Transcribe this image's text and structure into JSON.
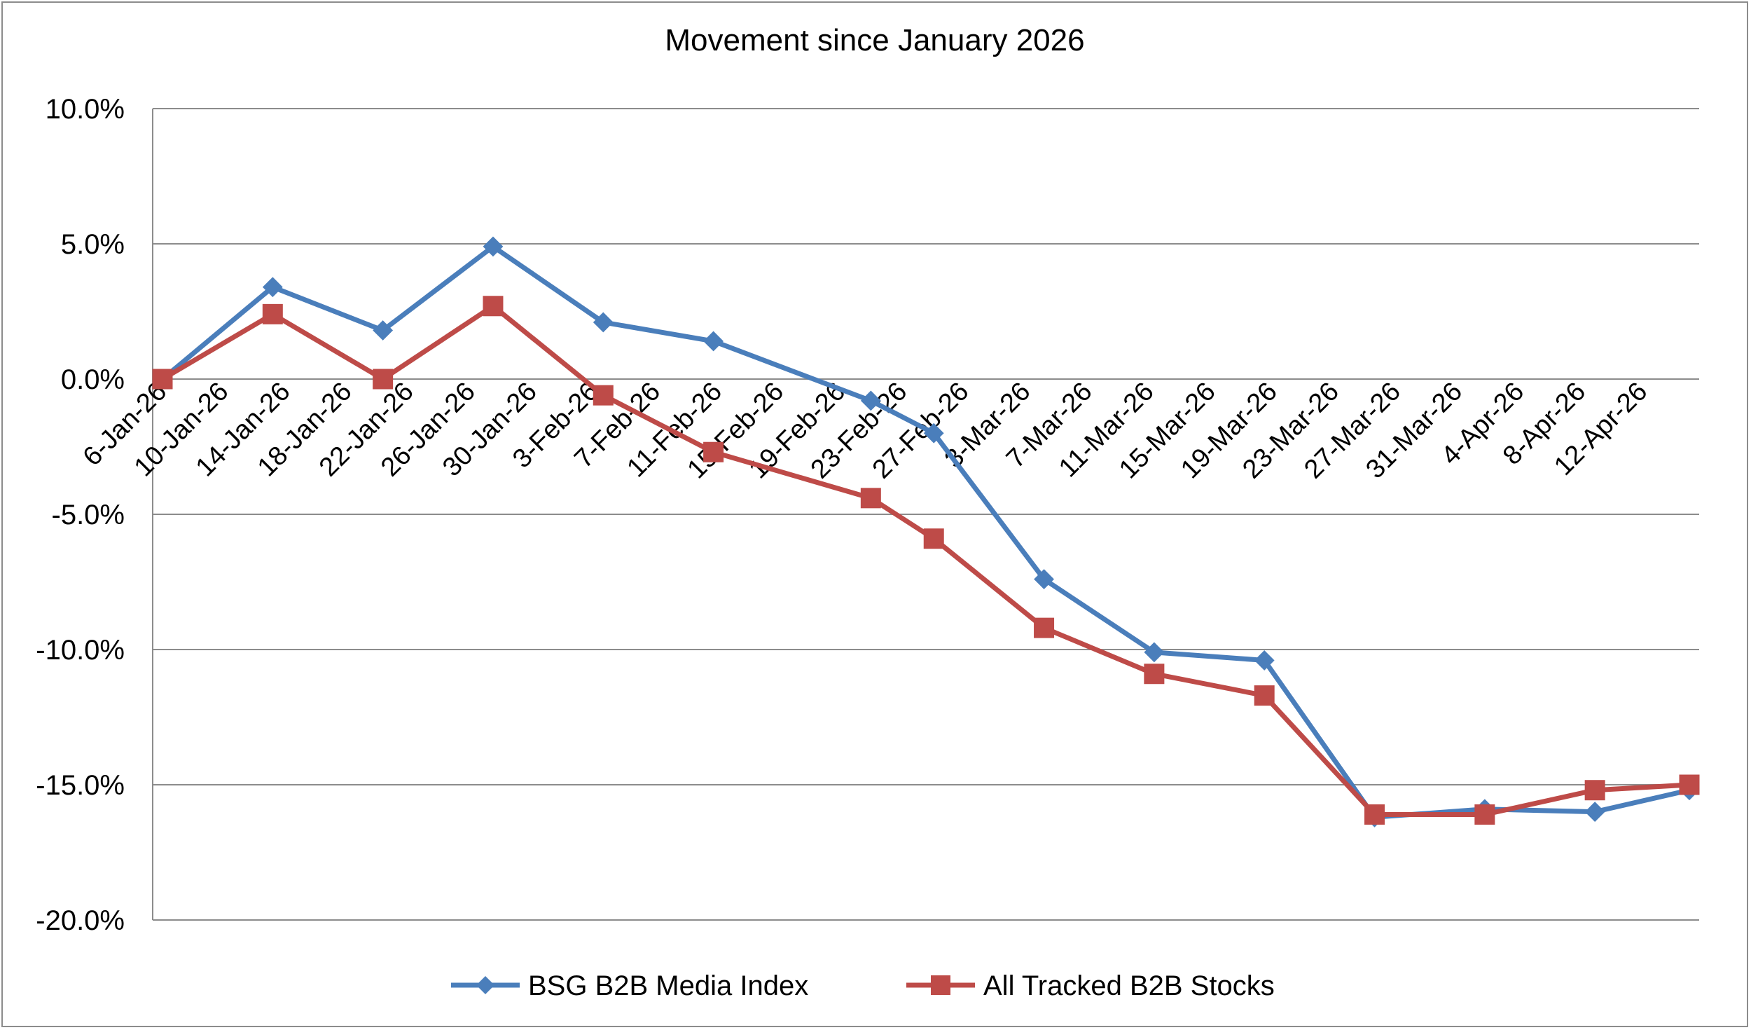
{
  "chart_data": {
    "type": "line",
    "title": "Movement since January 2026",
    "xlabel": "",
    "ylabel": "",
    "ylim": [
      -20,
      10
    ],
    "yticks": [
      10,
      5,
      0,
      -5,
      -10,
      -15,
      -20
    ],
    "ytick_labels": [
      "10.0%",
      "5.0%",
      "0.0%",
      "-5.0%",
      "-10.0%",
      "-15.0%",
      "-20.0%"
    ],
    "x_tick_labels": [
      "6-Jan-26",
      "10-Jan-26",
      "14-Jan-26",
      "18-Jan-26",
      "22-Jan-26",
      "26-Jan-26",
      "30-Jan-26",
      "3-Feb-26",
      "7-Feb-26",
      "11-Feb-26",
      "15-Feb-26",
      "19-Feb-26",
      "23-Feb-26",
      "27-Feb-26",
      "3-Mar-26",
      "7-Mar-26",
      "11-Mar-26",
      "15-Mar-26",
      "19-Mar-26",
      "23-Mar-26",
      "27-Mar-26",
      "31-Mar-26",
      "4-Apr-26",
      "8-Apr-26",
      "12-Apr-26"
    ],
    "x_range": [
      "2026-01-06",
      "2026-04-13"
    ],
    "grid": true,
    "legend_position": "bottom",
    "series": [
      {
        "name": "BSG B2B Media Index",
        "color": "#4a7ebb",
        "marker": "diamond",
        "points": [
          {
            "date": "2026-01-06",
            "value": 0.0
          },
          {
            "date": "2026-01-13",
            "value": 3.4
          },
          {
            "date": "2026-01-20",
            "value": 1.8
          },
          {
            "date": "2026-01-27",
            "value": 4.9
          },
          {
            "date": "2026-02-03",
            "value": 2.1
          },
          {
            "date": "2026-02-10",
            "value": 1.4
          },
          {
            "date": "2026-02-20",
            "value": -0.8
          },
          {
            "date": "2026-02-24",
            "value": -2.0
          },
          {
            "date": "2026-03-03",
            "value": -7.4
          },
          {
            "date": "2026-03-10",
            "value": -10.1
          },
          {
            "date": "2026-03-17",
            "value": -10.4
          },
          {
            "date": "2026-03-24",
            "value": -16.2
          },
          {
            "date": "2026-03-31",
            "value": -15.9
          },
          {
            "date": "2026-04-07",
            "value": -16.0
          },
          {
            "date": "2026-04-13",
            "value": -15.2
          }
        ]
      },
      {
        "name": "All Tracked B2B Stocks",
        "color": "#be4b48",
        "marker": "square",
        "points": [
          {
            "date": "2026-01-06",
            "value": 0.0
          },
          {
            "date": "2026-01-13",
            "value": 2.4
          },
          {
            "date": "2026-01-20",
            "value": 0.0
          },
          {
            "date": "2026-01-27",
            "value": 2.7
          },
          {
            "date": "2026-02-03",
            "value": -0.6
          },
          {
            "date": "2026-02-10",
            "value": -2.7
          },
          {
            "date": "2026-02-20",
            "value": -4.4
          },
          {
            "date": "2026-02-24",
            "value": -5.9
          },
          {
            "date": "2026-03-03",
            "value": -9.2
          },
          {
            "date": "2026-03-10",
            "value": -10.9
          },
          {
            "date": "2026-03-17",
            "value": -11.7
          },
          {
            "date": "2026-03-24",
            "value": -16.1
          },
          {
            "date": "2026-03-31",
            "value": -16.1
          },
          {
            "date": "2026-04-07",
            "value": -15.2
          },
          {
            "date": "2026-04-13",
            "value": -15.0
          }
        ]
      }
    ]
  }
}
